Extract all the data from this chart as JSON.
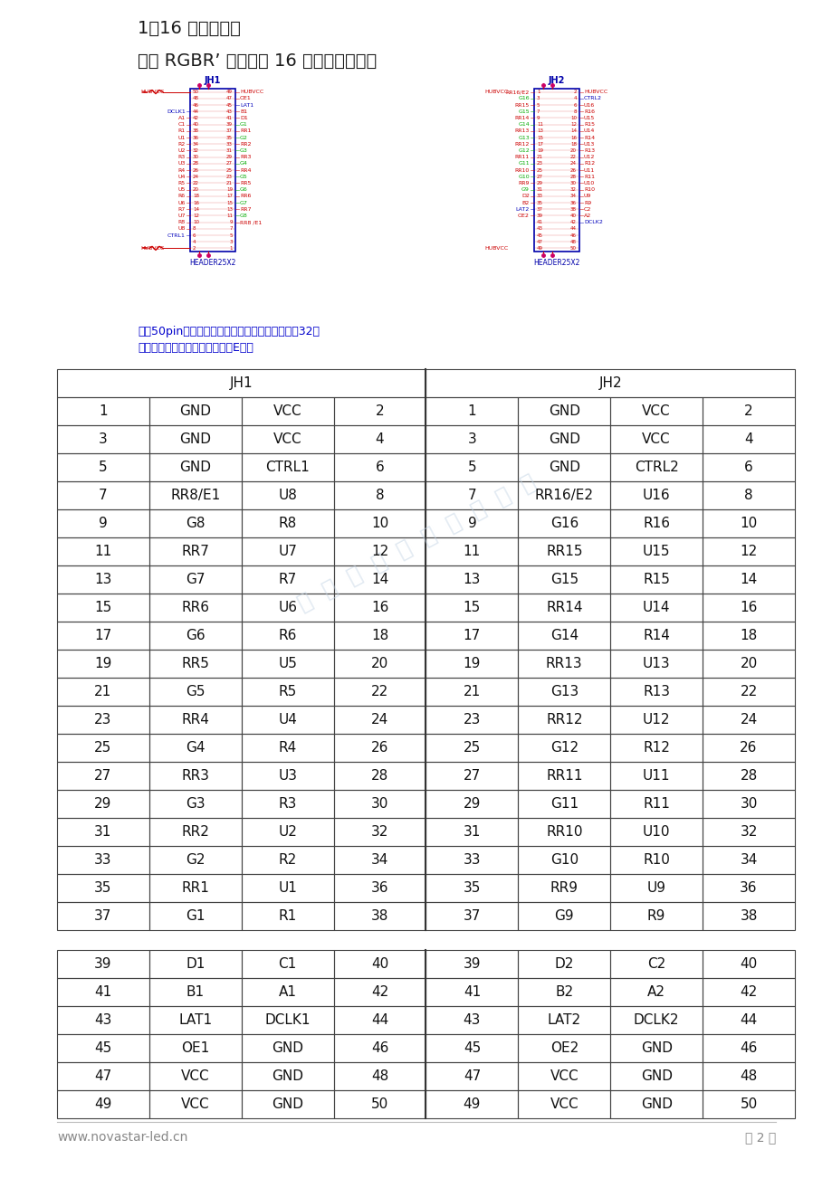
{
  "title1": "1）16 组数据模式",
  "title2": "支持 RGBR’ 并行数据 16 组，定义如下：",
  "note_line1": "每个50pin插座里面最后一组数据的虚拟红信号在32扫",
  "note_line2": "工作模式下时输出为译码信号的E信号",
  "footer_left": "www.novastar-led.cn",
  "footer_right": "第 2 页",
  "table1_rows": [
    [
      "1",
      "GND",
      "VCC",
      "2",
      "1",
      "GND",
      "VCC",
      "2"
    ],
    [
      "3",
      "GND",
      "VCC",
      "4",
      "3",
      "GND",
      "VCC",
      "4"
    ],
    [
      "5",
      "GND",
      "CTRL1",
      "6",
      "5",
      "GND",
      "CTRL2",
      "6"
    ],
    [
      "7",
      "RR8/E1",
      "U8",
      "8",
      "7",
      "RR16/E2",
      "U16",
      "8"
    ],
    [
      "9",
      "G8",
      "R8",
      "10",
      "9",
      "G16",
      "R16",
      "10"
    ],
    [
      "11",
      "RR7",
      "U7",
      "12",
      "11",
      "RR15",
      "U15",
      "12"
    ],
    [
      "13",
      "G7",
      "R7",
      "14",
      "13",
      "G15",
      "R15",
      "14"
    ],
    [
      "15",
      "RR6",
      "U6",
      "16",
      "15",
      "RR14",
      "U14",
      "16"
    ],
    [
      "17",
      "G6",
      "R6",
      "18",
      "17",
      "G14",
      "R14",
      "18"
    ],
    [
      "19",
      "RR5",
      "U5",
      "20",
      "19",
      "RR13",
      "U13",
      "20"
    ],
    [
      "21",
      "G5",
      "R5",
      "22",
      "21",
      "G13",
      "R13",
      "22"
    ],
    [
      "23",
      "RR4",
      "U4",
      "24",
      "23",
      "RR12",
      "U12",
      "24"
    ],
    [
      "25",
      "G4",
      "R4",
      "26",
      "25",
      "G12",
      "R12",
      "26"
    ],
    [
      "27",
      "RR3",
      "U3",
      "28",
      "27",
      "RR11",
      "U11",
      "28"
    ],
    [
      "29",
      "G3",
      "R3",
      "30",
      "29",
      "G11",
      "R11",
      "30"
    ],
    [
      "31",
      "RR2",
      "U2",
      "32",
      "31",
      "RR10",
      "U10",
      "32"
    ],
    [
      "33",
      "G2",
      "R2",
      "34",
      "33",
      "G10",
      "R10",
      "34"
    ],
    [
      "35",
      "RR1",
      "U1",
      "36",
      "35",
      "RR9",
      "U9",
      "36"
    ],
    [
      "37",
      "G1",
      "R1",
      "38",
      "37",
      "G9",
      "R9",
      "38"
    ]
  ],
  "table2_rows": [
    [
      "39",
      "D1",
      "C1",
      "40",
      "39",
      "D2",
      "C2",
      "40"
    ],
    [
      "41",
      "B1",
      "A1",
      "42",
      "41",
      "B2",
      "A2",
      "42"
    ],
    [
      "43",
      "LAT1",
      "DCLK1",
      "44",
      "43",
      "LAT2",
      "DCLK2",
      "44"
    ],
    [
      "45",
      "OE1",
      "GND",
      "46",
      "45",
      "OE2",
      "GND",
      "46"
    ],
    [
      "47",
      "VCC",
      "GND",
      "48",
      "47",
      "VCC",
      "GND",
      "48"
    ],
    [
      "49",
      "VCC",
      "GND",
      "50",
      "49",
      "VCC",
      "GND",
      "50"
    ]
  ],
  "jh1_left_signals": [
    [
      "DCLK1",
      "#0000bb"
    ],
    [
      "A1",
      "#cc0000"
    ],
    [
      "C1",
      "#cc0000"
    ],
    [
      "R1",
      "#cc0000"
    ],
    [
      "U1",
      "#cc0000"
    ],
    [
      "R2",
      "#cc0000"
    ],
    [
      "U2",
      "#cc0000"
    ],
    [
      "R3",
      "#cc0000"
    ],
    [
      "U3",
      "#cc0000"
    ],
    [
      "R4",
      "#cc0000"
    ],
    [
      "U4",
      "#cc0000"
    ],
    [
      "R5",
      "#cc0000"
    ],
    [
      "U5",
      "#cc0000"
    ],
    [
      "R6",
      "#cc0000"
    ],
    [
      "U6",
      "#cc0000"
    ],
    [
      "R7",
      "#cc0000"
    ],
    [
      "U7",
      "#cc0000"
    ],
    [
      "R8",
      "#cc0000"
    ],
    [
      "U8",
      "#cc0000"
    ],
    [
      "CTRL1",
      "#0000bb"
    ]
  ],
  "jh1_right_signals": [
    [
      "HUBVCC",
      "#cc0000"
    ],
    [
      "OE1",
      "#cc0000"
    ],
    [
      "LAT1",
      "#0000bb"
    ],
    [
      "B1",
      "#cc0000"
    ],
    [
      "D1",
      "#cc0000"
    ],
    [
      "G1",
      "#00aa00"
    ],
    [
      "RR1",
      "#cc0000"
    ],
    [
      "G2",
      "#00aa00"
    ],
    [
      "RR2",
      "#cc0000"
    ],
    [
      "G3",
      "#00aa00"
    ],
    [
      "RR3",
      "#cc0000"
    ],
    [
      "G4",
      "#00aa00"
    ],
    [
      "RR4",
      "#cc0000"
    ],
    [
      "G5",
      "#00aa00"
    ],
    [
      "RR5",
      "#cc0000"
    ],
    [
      "G6",
      "#00aa00"
    ],
    [
      "RR6",
      "#cc0000"
    ],
    [
      "G7",
      "#00aa00"
    ],
    [
      "RR7",
      "#cc0000"
    ],
    [
      "G8",
      "#00aa00"
    ],
    [
      "RR8 /E1",
      "#cc0000"
    ]
  ],
  "jh2_left_signals": [
    [
      "RR16/E2",
      "#cc0000"
    ],
    [
      "G16",
      "#00aa00"
    ],
    [
      "RR15",
      "#cc0000"
    ],
    [
      "G15",
      "#00aa00"
    ],
    [
      "RR14",
      "#cc0000"
    ],
    [
      "G14",
      "#00aa00"
    ],
    [
      "RR13",
      "#cc0000"
    ],
    [
      "G13",
      "#00aa00"
    ],
    [
      "RR12",
      "#cc0000"
    ],
    [
      "G12",
      "#00aa00"
    ],
    [
      "RR11",
      "#cc0000"
    ],
    [
      "G11",
      "#00aa00"
    ],
    [
      "RR10",
      "#cc0000"
    ],
    [
      "G10",
      "#00aa00"
    ],
    [
      "RR9",
      "#cc0000"
    ],
    [
      "G9",
      "#00aa00"
    ],
    [
      "D2",
      "#cc0000"
    ],
    [
      "B2",
      "#cc0000"
    ],
    [
      "LAT2",
      "#0000bb"
    ],
    [
      "OE2",
      "#cc0000"
    ]
  ],
  "jh2_right_signals": [
    [
      "HUBVCC",
      "#cc0000"
    ],
    [
      "CTRL2",
      "#0000bb"
    ],
    [
      "U16",
      "#cc0000"
    ],
    [
      "R16",
      "#cc0000"
    ],
    [
      "U15",
      "#cc0000"
    ],
    [
      "R15",
      "#cc0000"
    ],
    [
      "U14",
      "#cc0000"
    ],
    [
      "R14",
      "#cc0000"
    ],
    [
      "U13",
      "#cc0000"
    ],
    [
      "R13",
      "#cc0000"
    ],
    [
      "U12",
      "#cc0000"
    ],
    [
      "R12",
      "#cc0000"
    ],
    [
      "U11",
      "#cc0000"
    ],
    [
      "R11",
      "#cc0000"
    ],
    [
      "U10",
      "#cc0000"
    ],
    [
      "R10",
      "#cc0000"
    ],
    [
      "U9",
      "#cc0000"
    ],
    [
      "R9",
      "#cc0000"
    ],
    [
      "C2",
      "#cc0000"
    ],
    [
      "A2",
      "#cc0000"
    ],
    [
      "DCLK2",
      "#0000bb"
    ]
  ],
  "bg_color": "#ffffff",
  "text_color": "#1a1a1a",
  "line_color": "#555555",
  "note_color": "#0000cc",
  "watermark_color": "#c8d8e8",
  "footer_color": "#888888",
  "blue_label": "#0000aa",
  "red_label": "#cc0000"
}
